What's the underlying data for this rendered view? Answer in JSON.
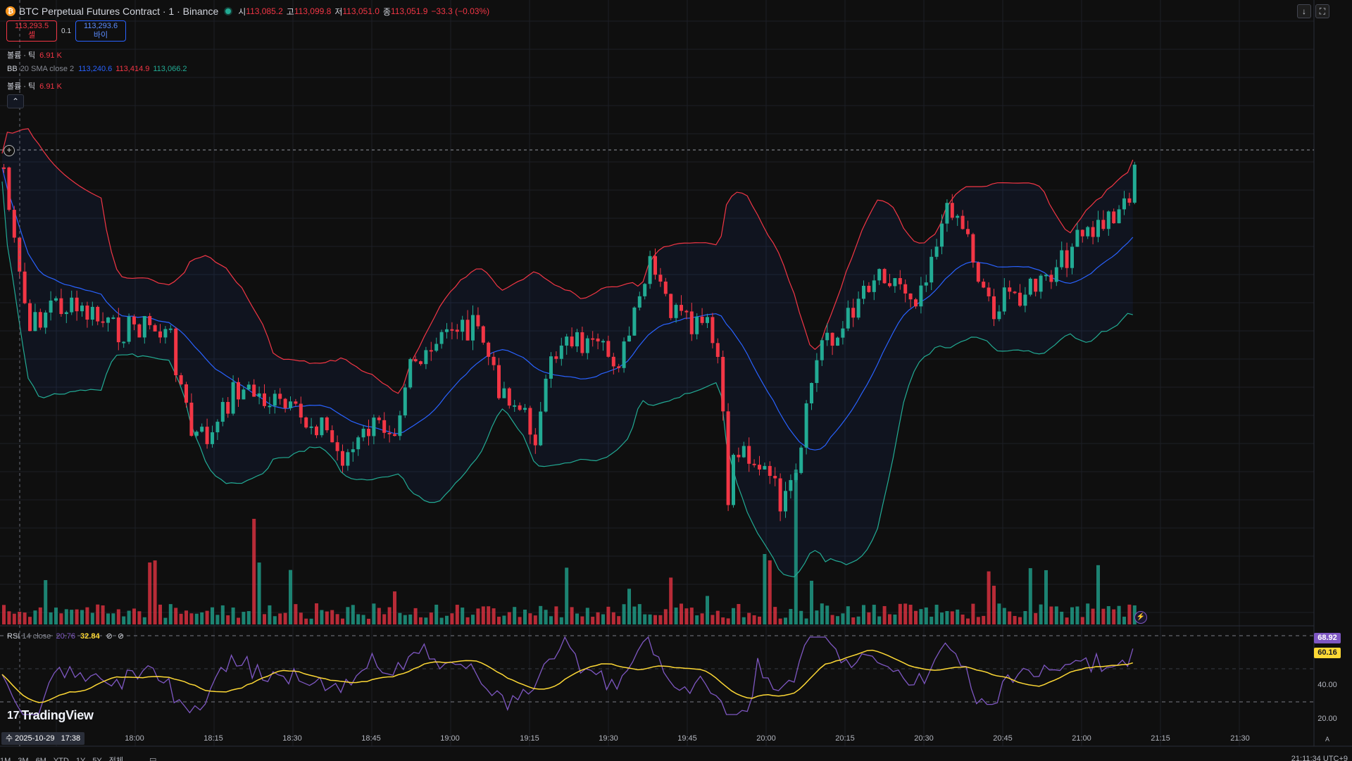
{
  "header": {
    "coin_icon": "bitcoin-icon",
    "title": "BTC Perpetual Futures Contract · 1 · Binance",
    "o_label": "시",
    "o_value": "113,085.2",
    "h_label": "고",
    "h_value": "113,099.8",
    "l_label": "저",
    "l_value": "113,051.0",
    "c_label": "종",
    "c_value": "113,051.9",
    "change": "−33.3 (−0.03%)"
  },
  "trade": {
    "sell_price": "113,293.5",
    "sell_label": "셀",
    "spread": "0.1",
    "buy_price": "113,293.6",
    "buy_label": "바이"
  },
  "legends": {
    "vol1_name": "볼륨 · 틱",
    "vol1_value": "6.91 K",
    "bb_name": "BB",
    "bb_params": "20 SMA close 2",
    "bb_basis": "113,240.6",
    "bb_upper": "113,414.9",
    "bb_lower": "113,066.2",
    "vol2_name": "볼륨 · 틱",
    "vol2_value": "6.91 K",
    "collapse_icon": "chevron-up-icon"
  },
  "rsi": {
    "name": "RSI",
    "params": "14 close",
    "value": "20.76",
    "ma_value": "32.84",
    "current_tag": "68.92",
    "ma_tag": "60.16",
    "scale": [
      "40.00",
      "20.00"
    ]
  },
  "time_axis": [
    "18:00",
    "18:15",
    "18:30",
    "18:45",
    "19:00",
    "19:15",
    "19:30",
    "19:45",
    "20:00",
    "20:15",
    "20:30",
    "20:45",
    "21:00",
    "21:15",
    "21:30"
  ],
  "crosshair_date": "수 2025-10-29",
  "crosshair_time": "17:38",
  "bottom_bar": [
    "1M",
    "3M",
    "6M",
    "YTD",
    "1Y",
    "5Y",
    "전체"
  ],
  "utc": "21:11:34 UTC+9",
  "logo": "TradingView",
  "auto_label": "A",
  "colors": {
    "up": "#22ab94",
    "down": "#f23645",
    "basis": "#2962ff",
    "upper": "#f23645",
    "lower": "#22ab94",
    "rsi": "#7e57c2",
    "rsi_ma": "#fdd835"
  }
}
